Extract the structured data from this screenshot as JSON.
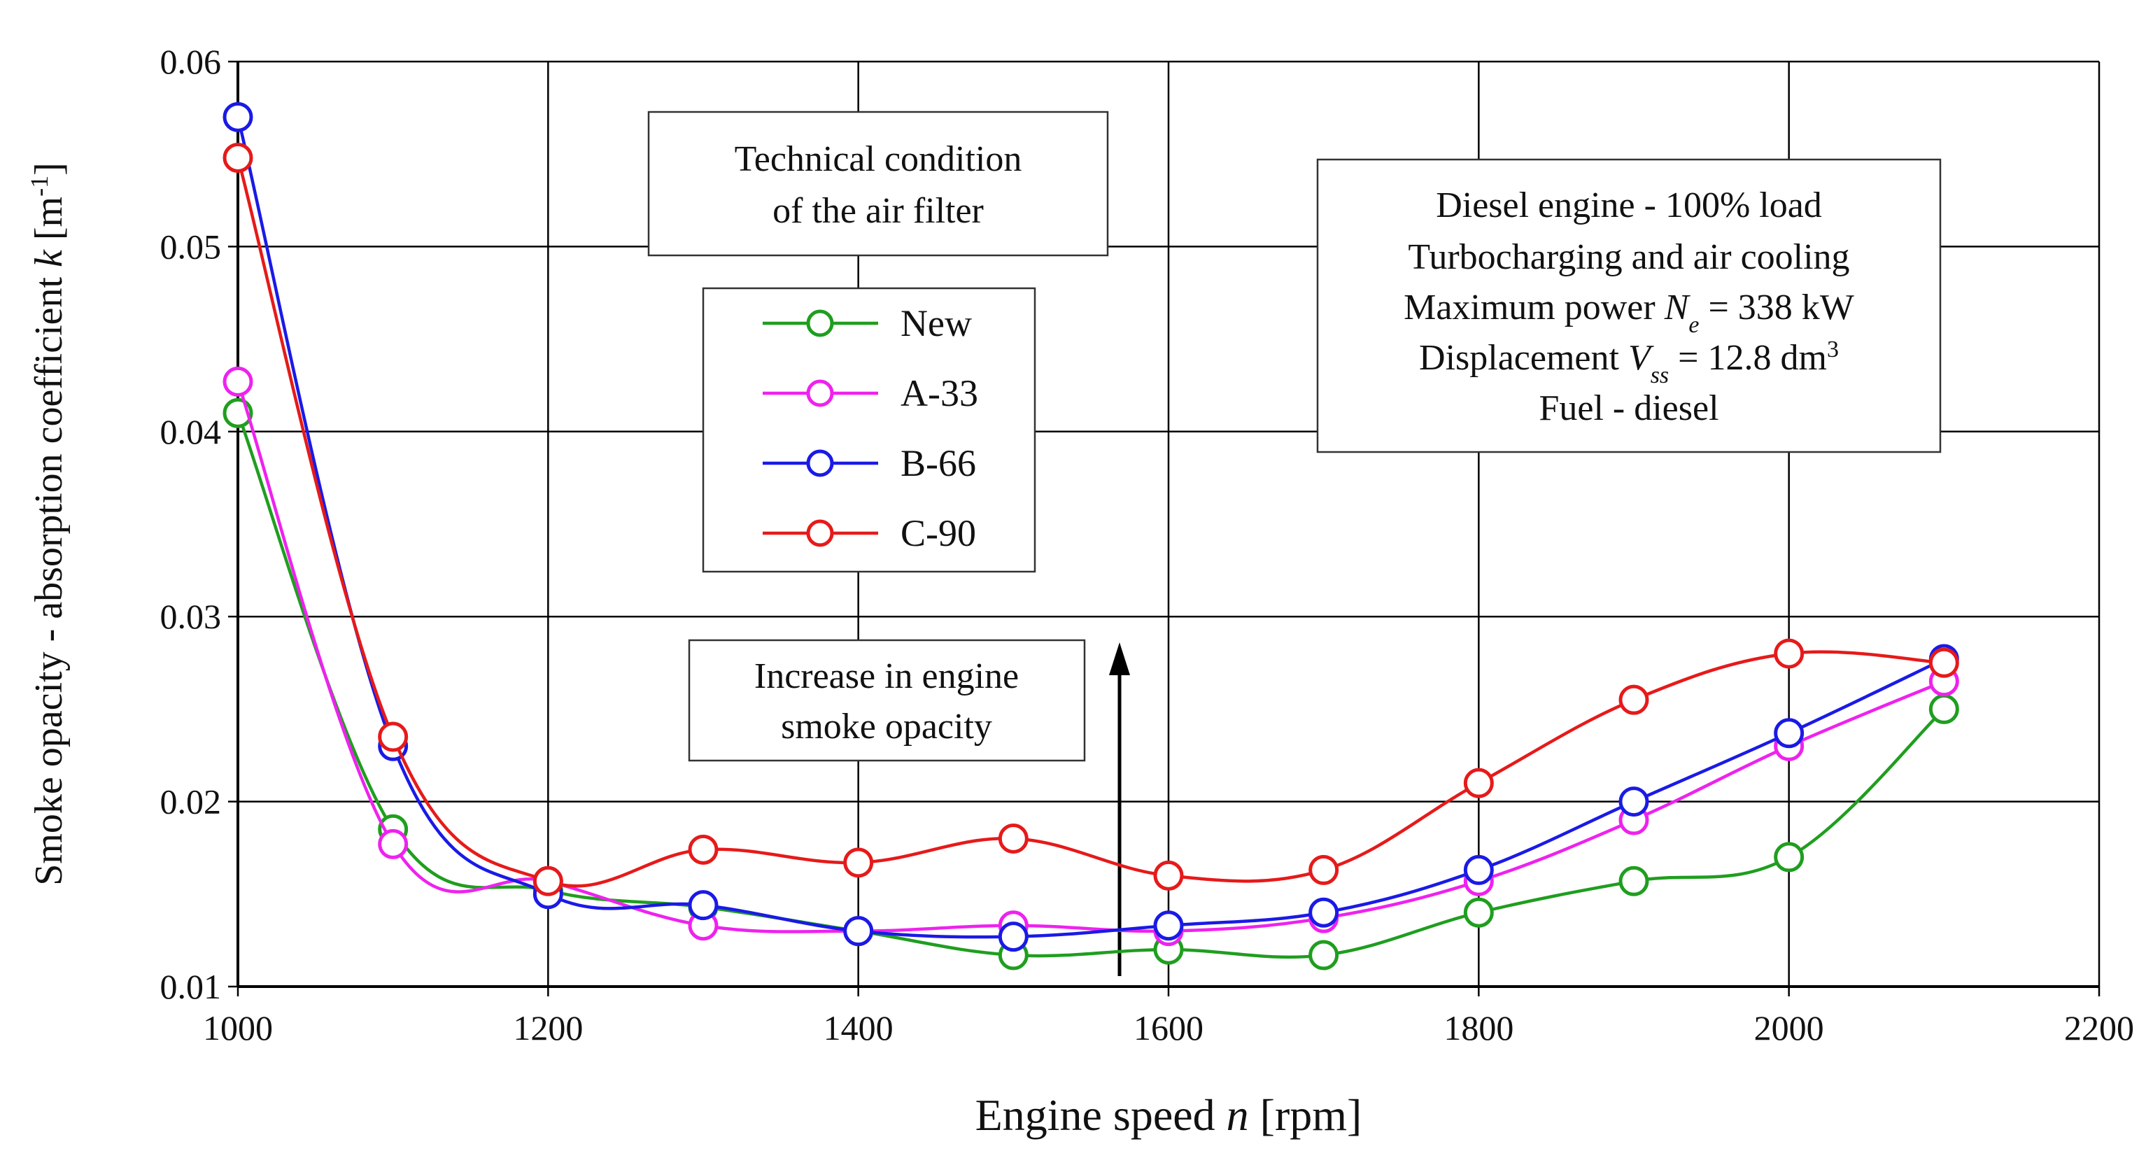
{
  "chart_data": {
    "type": "line",
    "xlabel_main": "Engine speed ",
    "xlabel_var": "n",
    "xlabel_unit": " [rpm]",
    "ylabel_main": "Smoke opacity - absorption coefficient ",
    "ylabel_var": "k",
    "ylabel_unit_pre": " [m",
    "ylabel_unit_sup": "-1",
    "ylabel_unit_post": "]",
    "xlim": [
      1000,
      2200
    ],
    "ylim": [
      0.01,
      0.06
    ],
    "xticks": [
      "1000",
      "1200",
      "1400",
      "1600",
      "1800",
      "2000",
      "2200"
    ],
    "yticks": [
      "0.01",
      "0.02",
      "0.03",
      "0.04",
      "0.05",
      "0.06"
    ],
    "grid": true,
    "x": [
      1000,
      1100,
      1200,
      1300,
      1400,
      1500,
      1600,
      1700,
      1800,
      1900,
      2000,
      2100
    ],
    "series": [
      {
        "name": "New",
        "color": "#1f9e1f",
        "values": [
          0.041,
          0.0185,
          0.0152,
          0.0143,
          0.013,
          0.0117,
          0.012,
          0.0117,
          0.014,
          0.0157,
          0.017,
          0.025
        ]
      },
      {
        "name": "A-33",
        "color": "#ee22ee",
        "values": [
          0.0427,
          0.0177,
          0.0157,
          0.0133,
          0.013,
          0.0133,
          0.013,
          0.0137,
          0.0157,
          0.019,
          0.023,
          0.0265
        ]
      },
      {
        "name": "B-66",
        "color": "#1a1ae6",
        "values": [
          0.057,
          0.023,
          0.015,
          0.0144,
          0.013,
          0.0127,
          0.0133,
          0.014,
          0.0163,
          0.02,
          0.0237,
          0.0277
        ]
      },
      {
        "name": "C-90",
        "color": "#e61a1a",
        "values": [
          0.0548,
          0.0235,
          0.0157,
          0.0174,
          0.0167,
          0.018,
          0.016,
          0.0163,
          0.021,
          0.0255,
          0.028,
          0.0275
        ]
      }
    ],
    "annotations": {
      "filter_title": [
        "Technical condition",
        "of the air filter"
      ],
      "engine_info": {
        "line1": "Diesel engine - 100% load",
        "line2": "Turbocharging and air cooling",
        "line3_pre": "Maximum power ",
        "line3_var": "N",
        "line3_sub": "e",
        "line3_post": " = 338 kW",
        "line4_pre": "Displacement ",
        "line4_var": "V",
        "line4_sub": "ss",
        "line4_post": " = 12.8 dm",
        "line4_sup": "3",
        "line5": "Fuel - diesel"
      },
      "opacity_note": [
        "Increase in engine",
        "smoke opacity"
      ]
    }
  }
}
